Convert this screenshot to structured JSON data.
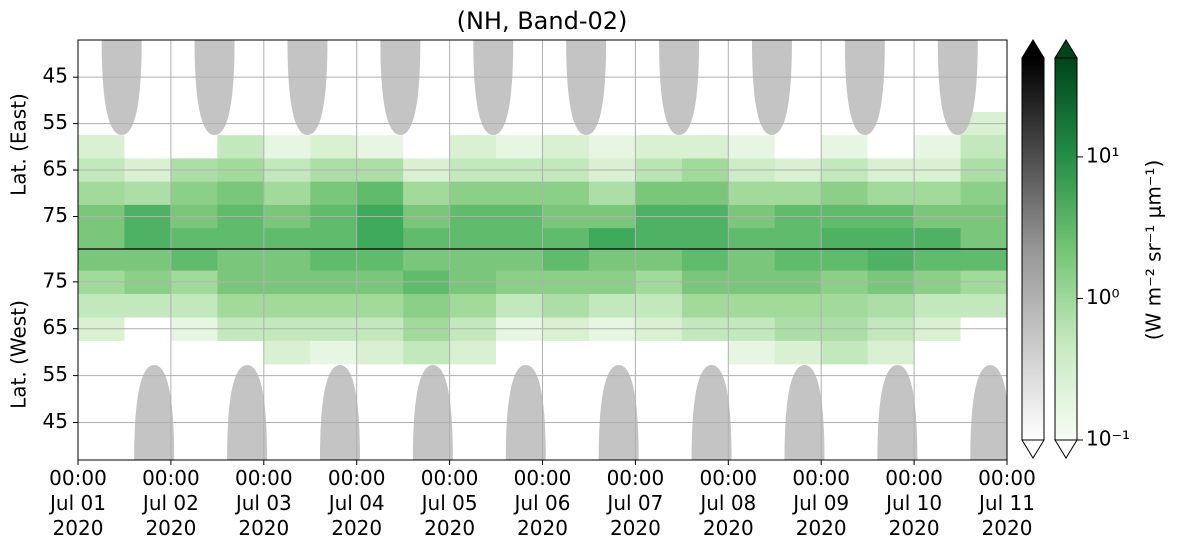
{
  "chart_data": {
    "type": "heatmap",
    "title": "(NH, Band-02)",
    "x": [
      "2020-07-01 00:00",
      "2020-07-01 12:00",
      "2020-07-02 00:00",
      "2020-07-02 12:00",
      "2020-07-03 00:00",
      "2020-07-03 12:00",
      "2020-07-04 00:00",
      "2020-07-04 12:00",
      "2020-07-05 00:00",
      "2020-07-05 12:00",
      "2020-07-06 00:00",
      "2020-07-06 12:00",
      "2020-07-07 00:00",
      "2020-07-07 12:00",
      "2020-07-08 00:00",
      "2020-07-08 12:00",
      "2020-07-09 00:00",
      "2020-07-09 12:00",
      "2020-07-10 00:00",
      "2020-07-10 12:00"
    ],
    "xlim": [
      "2020-07-01 00:00",
      "2020-07-11 00:00"
    ],
    "xticks": [
      {
        "value": "2020-07-01 00:00",
        "label": "00:00\nJul 01\n2020"
      },
      {
        "value": "2020-07-02 00:00",
        "label": "00:00\nJul 02\n2020"
      },
      {
        "value": "2020-07-03 00:00",
        "label": "00:00\nJul 03\n2020"
      },
      {
        "value": "2020-07-04 00:00",
        "label": "00:00\nJul 04\n2020"
      },
      {
        "value": "2020-07-05 00:00",
        "label": "00:00\nJul 05\n2020"
      },
      {
        "value": "2020-07-06 00:00",
        "label": "00:00\nJul 06\n2020"
      },
      {
        "value": "2020-07-07 00:00",
        "label": "00:00\nJul 07\n2020"
      },
      {
        "value": "2020-07-08 00:00",
        "label": "00:00\nJul 08\n2020"
      },
      {
        "value": "2020-07-09 00:00",
        "label": "00:00\nJul 09\n2020"
      },
      {
        "value": "2020-07-10 00:00",
        "label": "00:00\nJul 10\n2020"
      },
      {
        "value": "2020-07-11 00:00",
        "label": "00:00\nJul 11\n2020"
      }
    ],
    "lats": [
      40,
      45,
      50,
      55,
      60,
      65,
      70,
      75,
      80
    ],
    "grid": true,
    "panels": [
      {
        "ylabel": "Lat. (East)",
        "ylim": [
          37,
          82
        ],
        "yticks": [
          45,
          55,
          65,
          75
        ],
        "values": [
          [
            0,
            0,
            0,
            0,
            0,
            0,
            0,
            0,
            0,
            0,
            0,
            0,
            0,
            0,
            0,
            0,
            0,
            0,
            0,
            0
          ],
          [
            0,
            0,
            0,
            0,
            0,
            0,
            0,
            0,
            0,
            0,
            0,
            0,
            0,
            0,
            0,
            0,
            0,
            0,
            0,
            0
          ],
          [
            0,
            0,
            0,
            0,
            0,
            0,
            0,
            0,
            0,
            0,
            0,
            0,
            0,
            0,
            0,
            0,
            0,
            0,
            0,
            0
          ],
          [
            0,
            0,
            0,
            0,
            0,
            0,
            0,
            0,
            0,
            0,
            0,
            0,
            0,
            0,
            0,
            0,
            0,
            0,
            0,
            0.3
          ],
          [
            0.3,
            0,
            0,
            0.5,
            0.2,
            0.3,
            0.2,
            0,
            0.3,
            0.2,
            0.3,
            0.2,
            0.3,
            0.3,
            0.2,
            0,
            0.2,
            0,
            0.2,
            0.5
          ],
          [
            0.5,
            0.3,
            0.8,
            1,
            0.5,
            0.8,
            0.8,
            0.3,
            0.5,
            0.5,
            0.5,
            0.3,
            0.6,
            1,
            0.4,
            0.3,
            0.5,
            0.3,
            0.3,
            0.8
          ],
          [
            1,
            0.8,
            1.5,
            2,
            1,
            2,
            3,
            1,
            1.5,
            1.5,
            1.5,
            0.8,
            2,
            2,
            1,
            1,
            1.5,
            1,
            1,
            1.5
          ],
          [
            2,
            4,
            2,
            3,
            2,
            3,
            5,
            2,
            3,
            3,
            2,
            2,
            4,
            4,
            2,
            3,
            3,
            3,
            2,
            2
          ],
          [
            2,
            4,
            3,
            3,
            3,
            3,
            5,
            3,
            3,
            3,
            3,
            5,
            4,
            4,
            3,
            3,
            4,
            4,
            4,
            2
          ]
        ]
      },
      {
        "ylabel": "Lat. (West)",
        "ylim": [
          82,
          37
        ],
        "yticks": [
          75,
          65,
          55,
          45
        ],
        "values": [
          [
            0,
            0,
            0,
            0,
            0,
            0,
            0,
            0,
            0,
            0,
            0,
            0,
            0,
            0,
            0,
            0,
            0,
            0,
            0,
            0
          ],
          [
            0,
            0,
            0,
            0,
            0,
            0,
            0,
            0,
            0,
            0,
            0,
            0,
            0,
            0,
            0,
            0,
            0,
            0,
            0,
            0
          ],
          [
            0,
            0,
            0,
            0,
            0,
            0,
            0,
            0,
            0,
            0,
            0,
            0,
            0,
            0,
            0,
            0,
            0,
            0,
            0,
            0
          ],
          [
            0,
            0,
            0,
            0,
            0,
            0,
            0,
            0,
            0,
            0,
            0,
            0,
            0,
            0,
            0,
            0,
            0,
            0,
            0,
            0
          ],
          [
            0,
            0,
            0,
            0,
            0.3,
            0.2,
            0.3,
            0.5,
            0.3,
            0,
            0,
            0,
            0,
            0,
            0.2,
            0.3,
            0.5,
            0.3,
            0,
            0
          ],
          [
            0.3,
            0,
            0.2,
            0.5,
            0.5,
            0.5,
            0.5,
            1,
            0.5,
            0.2,
            0.3,
            0.2,
            0.3,
            0.5,
            0.5,
            0.8,
            0.8,
            0.5,
            0.3,
            0
          ],
          [
            0.5,
            0.5,
            0.5,
            1,
            1,
            1,
            1,
            1.5,
            1,
            0.5,
            0.8,
            0.5,
            0.5,
            1,
            1,
            1,
            1,
            0.8,
            0.5,
            0.5
          ],
          [
            1,
            1.5,
            1,
            2,
            2,
            2,
            2,
            3,
            2,
            1.5,
            1.5,
            1.5,
            1,
            2,
            2,
            2,
            1.5,
            2,
            1.5,
            1
          ],
          [
            2,
            2,
            3,
            2,
            2,
            3,
            3,
            2,
            2,
            2,
            3,
            2,
            2,
            3,
            2,
            3,
            3,
            4,
            3,
            3
          ]
        ]
      }
    ],
    "colorbar": {
      "label": "(W m⁻² sr⁻¹ μm⁻¹)",
      "log": true,
      "clim": [
        0.1,
        50
      ],
      "ticks": [
        {
          "value": 0.1,
          "label": "10⁻¹"
        },
        {
          "value": 1,
          "label": "10⁰"
        },
        {
          "value": 10,
          "label": "10¹"
        }
      ]
    }
  }
}
